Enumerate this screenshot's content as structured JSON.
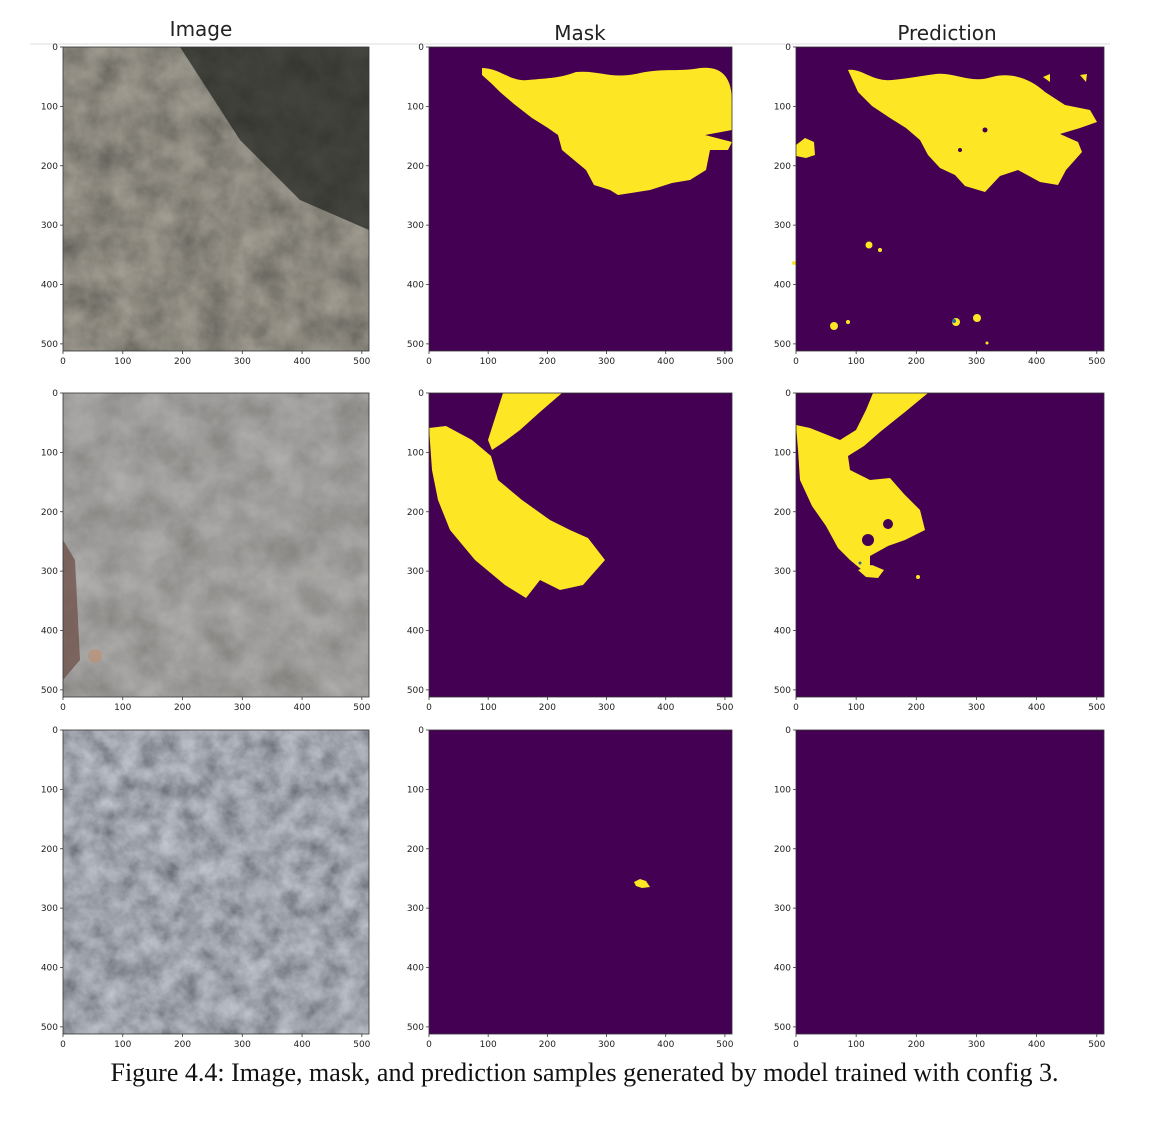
{
  "column_titles": [
    "Image",
    "Mask",
    "Prediction"
  ],
  "axis_ticks": {
    "x": [
      "0",
      "100",
      "200",
      "300",
      "400",
      "500"
    ],
    "y": [
      "0",
      "100",
      "200",
      "300",
      "400",
      "500"
    ]
  },
  "rows": [
    {
      "name": "row-1",
      "mask": "large region top-centre",
      "prediction": "large region top-centre with scattered specks"
    },
    {
      "name": "row-2",
      "mask": "region upper-left with thin strip",
      "prediction": "region upper-left with holes"
    },
    {
      "name": "row-3",
      "mask": "small speck near (350, 260)",
      "prediction": "empty"
    }
  ],
  "colors": {
    "background_class": "#440154",
    "foreground_class": "#fde725",
    "edge_class": "#31688e"
  },
  "caption": "Figure 4.4: Image, mask, and prediction samples generated by model trained with config 3."
}
